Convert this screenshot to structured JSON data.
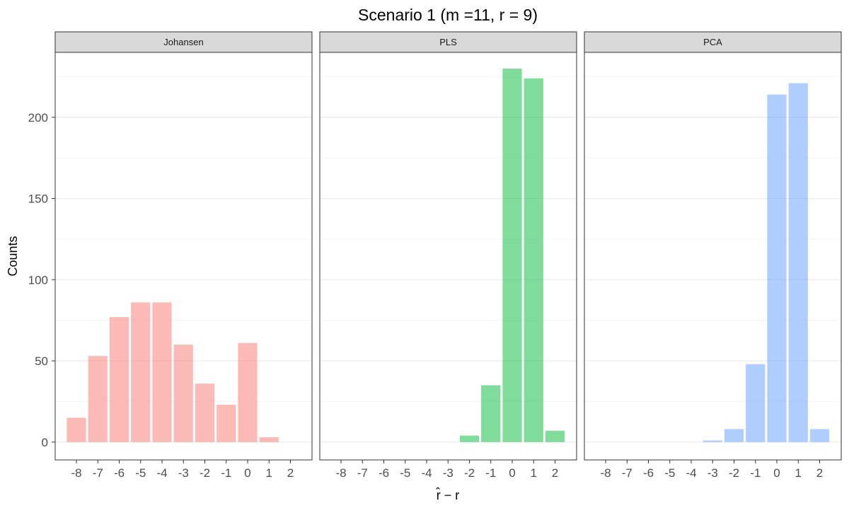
{
  "chart_data": {
    "type": "bar",
    "title": "Scenario 1 (m =11, r = 9)",
    "xlabel": "r̂ − r",
    "ylabel": "Counts",
    "categories": [
      -8,
      -7,
      -6,
      -5,
      -4,
      -3,
      -2,
      -1,
      0,
      1,
      2
    ],
    "category_labels": [
      "-8",
      "-7",
      "-6",
      "-5",
      "-4",
      "-3",
      "-2",
      "-1",
      "0",
      "1",
      "2"
    ],
    "ylim": [
      -11,
      240
    ],
    "yticks": [
      0,
      50,
      100,
      150,
      200
    ],
    "grid": true,
    "panels": [
      {
        "name": "Johansen",
        "color": "#f8766d",
        "values": [
          15,
          53,
          77,
          86,
          86,
          60,
          36,
          23,
          61,
          3,
          0
        ]
      },
      {
        "name": "PLS",
        "color": "#00ba38",
        "values": [
          0,
          0,
          0,
          0,
          0,
          0,
          4,
          35,
          230,
          224,
          7
        ]
      },
      {
        "name": "PCA",
        "color": "#619cff",
        "values": [
          0,
          0,
          0,
          0,
          0,
          1,
          8,
          48,
          214,
          221,
          8
        ]
      }
    ]
  }
}
